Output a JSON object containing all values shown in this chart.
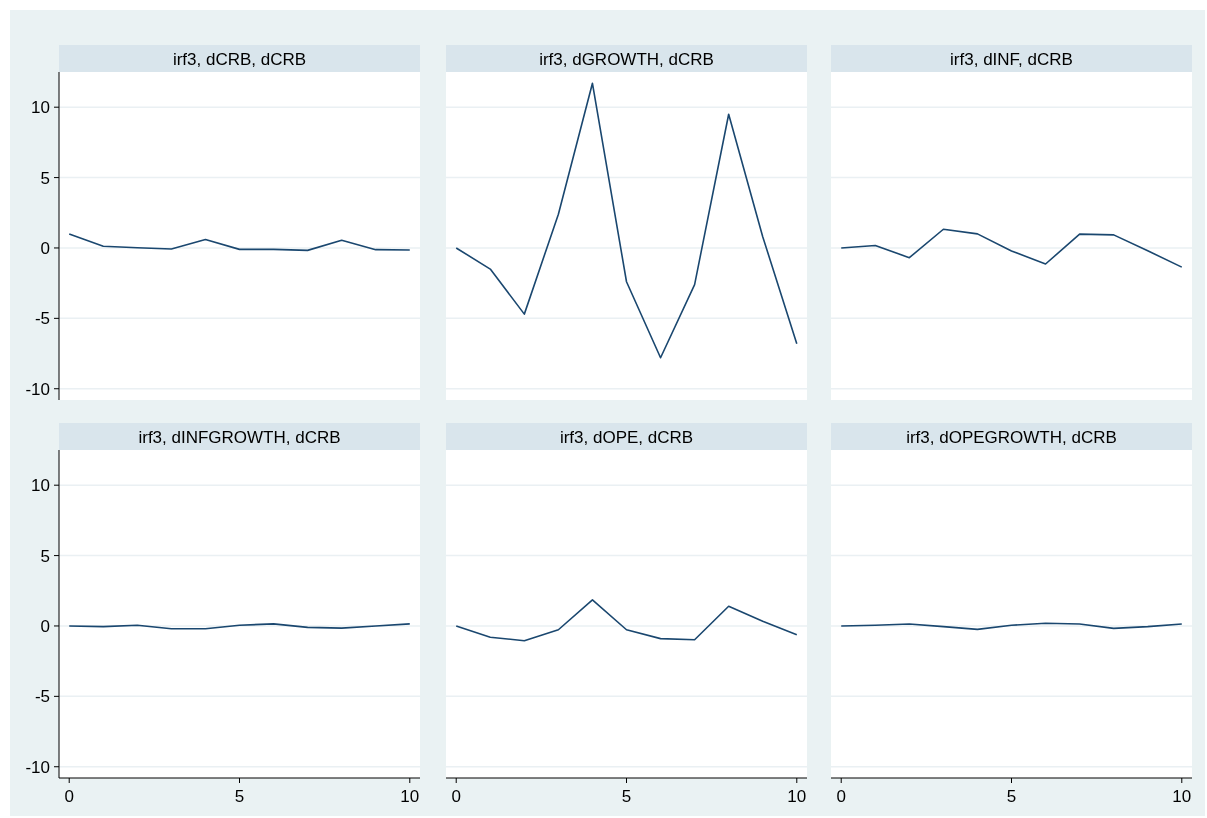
{
  "chart_data": [
    {
      "type": "line",
      "title": "irf3, dCRB, dCRB",
      "x": [
        0,
        1,
        2,
        3,
        4,
        5,
        6,
        7,
        8,
        9,
        10
      ],
      "series": [
        {
          "color": "#1a476f",
          "values": [
            1.0,
            0.12,
            0.02,
            -0.07,
            0.6,
            -0.1,
            -0.1,
            -0.17,
            0.55,
            -0.12,
            -0.14
          ]
        }
      ],
      "xlim": [
        -0.3,
        10.3
      ],
      "ylim": [
        -10.8,
        12.5
      ],
      "yticks": [
        -10,
        -5,
        0,
        5,
        10
      ],
      "grid": "y",
      "tick_labels": "y"
    },
    {
      "type": "line",
      "title": "irf3, dGROWTH, dCRB",
      "x": [
        0,
        1,
        2,
        3,
        4,
        5,
        6,
        7,
        8,
        9,
        10
      ],
      "series": [
        {
          "color": "#1a476f",
          "values": [
            0,
            -1.5,
            -4.7,
            2.4,
            11.7,
            -2.4,
            -7.8,
            -2.6,
            9.5,
            0.8,
            -6.8
          ]
        }
      ],
      "xlim": [
        -0.3,
        10.3
      ],
      "ylim": [
        -10.8,
        12.5
      ],
      "yticks": [
        -10,
        -5,
        0,
        5,
        10
      ],
      "grid": "y",
      "tick_labels": false
    },
    {
      "type": "line",
      "title": "irf3, dINF, dCRB",
      "x": [
        0,
        1,
        2,
        3,
        4,
        5,
        6,
        7,
        8,
        9,
        10
      ],
      "series": [
        {
          "color": "#1a476f",
          "values": [
            0,
            0.17,
            -0.69,
            1.33,
            1.0,
            -0.21,
            -1.14,
            0.98,
            0.93,
            -0.2,
            -1.36
          ]
        }
      ],
      "xlim": [
        -0.3,
        10.3
      ],
      "ylim": [
        -10.8,
        12.5
      ],
      "yticks": [
        -10,
        -5,
        0,
        5,
        10
      ],
      "grid": "y",
      "tick_labels": false
    },
    {
      "type": "line",
      "title": "irf3, dINFGROWTH, dCRB",
      "x": [
        0,
        1,
        2,
        3,
        4,
        5,
        6,
        7,
        8,
        9,
        10
      ],
      "series": [
        {
          "color": "#1a476f",
          "values": [
            0,
            -0.05,
            0.05,
            -0.2,
            -0.2,
            0.05,
            0.15,
            -0.1,
            -0.15,
            0,
            0.15
          ]
        }
      ],
      "xlim": [
        -0.3,
        10.3
      ],
      "ylim": [
        -10.8,
        12.5
      ],
      "xticks": [
        0,
        5,
        10
      ],
      "yticks": [
        -10,
        -5,
        0,
        5,
        10
      ],
      "grid": "y"
    },
    {
      "type": "line",
      "title": "irf3, dOPE, dCRB",
      "x": [
        0,
        1,
        2,
        3,
        4,
        5,
        6,
        7,
        8,
        9,
        10
      ],
      "series": [
        {
          "color": "#1a476f",
          "values": [
            0,
            -0.8,
            -1.05,
            -0.27,
            1.86,
            -0.27,
            -0.9,
            -0.98,
            1.4,
            0.33,
            -0.62
          ]
        }
      ],
      "xlim": [
        -0.3,
        10.3
      ],
      "ylim": [
        -10.8,
        12.5
      ],
      "xticks": [
        0,
        5,
        10
      ],
      "yticks": [
        -10,
        -5,
        0,
        5,
        10
      ],
      "grid": "y",
      "tick_labels": "x"
    },
    {
      "type": "line",
      "title": "irf3, dOPEGROWTH, dCRB",
      "x": [
        0,
        1,
        2,
        3,
        4,
        5,
        6,
        7,
        8,
        9,
        10
      ],
      "series": [
        {
          "color": "#1a476f",
          "values": [
            0,
            0.05,
            0.14,
            -0.05,
            -0.24,
            0.05,
            0.19,
            0.14,
            -0.17,
            -0.05,
            0.14
          ]
        }
      ],
      "xlim": [
        -0.3,
        10.3
      ],
      "ylim": [
        -10.8,
        12.5
      ],
      "xticks": [
        0,
        5,
        10
      ],
      "yticks": [
        -10,
        -5,
        0,
        5,
        10
      ],
      "grid": "y",
      "tick_labels": "x"
    }
  ]
}
